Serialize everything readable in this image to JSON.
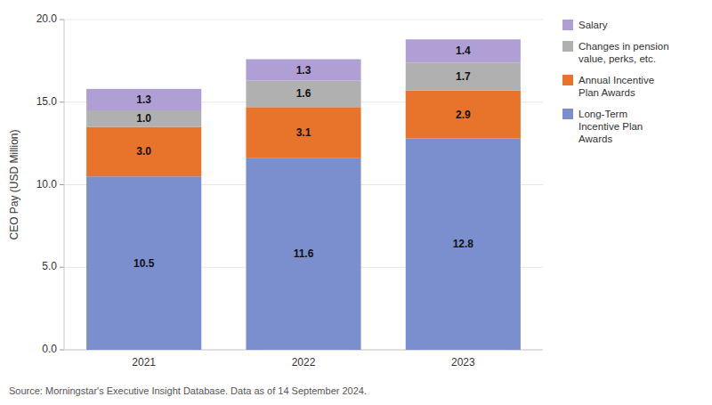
{
  "chart_data": {
    "type": "bar",
    "stacked": true,
    "categories": [
      "2021",
      "2022",
      "2023"
    ],
    "series": [
      {
        "name": "Long-Term\nIncentive Plan\nAwards",
        "color": "#7b8fcf",
        "values": [
          10.5,
          11.6,
          12.8
        ],
        "value_labels": [
          "10.5",
          "11.6",
          "12.8"
        ]
      },
      {
        "name": "Annual Incentive\nPlan Awards",
        "color": "#e8732a",
        "values": [
          3.0,
          3.1,
          2.9
        ],
        "value_labels": [
          "3.0",
          "3.1",
          "2.9"
        ]
      },
      {
        "name": "Changes in pension\nvalue, perks, etc.",
        "color": "#b0b0b0",
        "values": [
          1.0,
          1.6,
          1.7
        ],
        "value_labels": [
          "1.0",
          "1.6",
          "1.7"
        ]
      },
      {
        "name": "Salary",
        "color": "#b09fd4",
        "values": [
          1.3,
          1.3,
          1.4
        ],
        "value_labels": [
          "1.3",
          "1.3",
          "1.4"
        ]
      }
    ],
    "ylabel": "CEO Pay (USD Million)",
    "ylim": [
      0,
      20.0
    ],
    "yticks": [
      {
        "value": 0,
        "label": "0.0"
      },
      {
        "value": 5,
        "label": "5.0"
      },
      {
        "value": 10,
        "label": "10.0"
      },
      {
        "value": 15,
        "label": "15.0"
      },
      {
        "value": 20,
        "label": "20.0"
      }
    ],
    "grid": true,
    "data_labels": true,
    "legend": "right",
    "annotations": [
      "Source: Morningstar's Executive Insight Database. Data as of 14 September 2024."
    ]
  }
}
